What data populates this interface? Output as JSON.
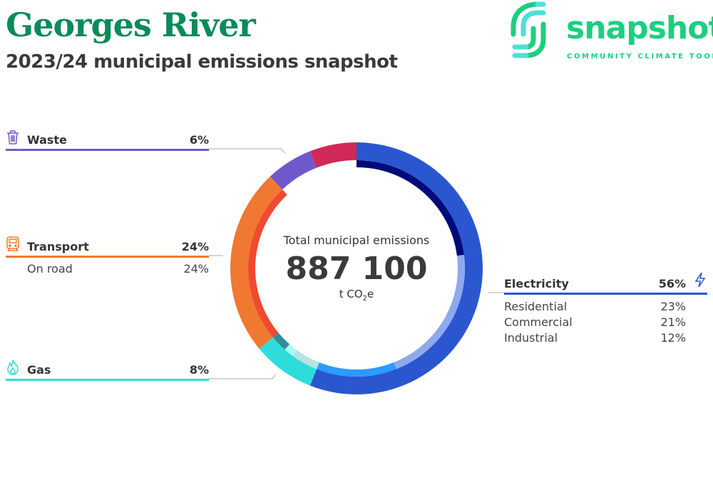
{
  "header": {
    "title": "Georges River",
    "subtitle": "2023/24 municipal emissions snapshot"
  },
  "logo": {
    "word": "snapshot",
    "tagline": "COMMUNITY CLIMATE TOOL"
  },
  "chart_data": {
    "type": "pie",
    "title": "Total municipal emissions",
    "total": "887 100",
    "unit": "t CO2e",
    "unit_main": "t CO",
    "unit_sub": "2",
    "unit_end": "e",
    "series": [
      {
        "name": "Electricity",
        "label": "56%",
        "value": 56,
        "color": "#2a56d0",
        "icon": "lightning-icon",
        "sub": [
          {
            "name": "Residential",
            "label": "23%",
            "value": 23,
            "color": "#000a7a"
          },
          {
            "name": "Commercial",
            "label": "21%",
            "value": 21,
            "color": "#8ea9ec"
          },
          {
            "name": "Industrial",
            "label": "12%",
            "value": 12,
            "color": "#2b9bff"
          }
        ]
      },
      {
        "name": "Gas",
        "label": "8%",
        "value": 8,
        "color": "#2edcdc",
        "icon": "flame-icon",
        "sub": [
          {
            "value": 4,
            "color": "#b8e2e2"
          },
          {
            "value": 1.5,
            "color": "#a8faff"
          },
          {
            "value": 2.5,
            "color": "#2e8c9c"
          }
        ]
      },
      {
        "name": "Transport",
        "label": "24%",
        "value": 24,
        "color": "#f07830",
        "icon": "train-icon",
        "sub": [
          {
            "name": "On road",
            "label": "24%",
            "value": 24,
            "color": "#f04a30"
          }
        ]
      },
      {
        "name": "Waste",
        "label": "6%",
        "value": 6,
        "color": "#7058cc",
        "icon": "trash-icon",
        "sub": []
      },
      {
        "value": 6,
        "color": "#d02858",
        "sub": []
      }
    ]
  }
}
